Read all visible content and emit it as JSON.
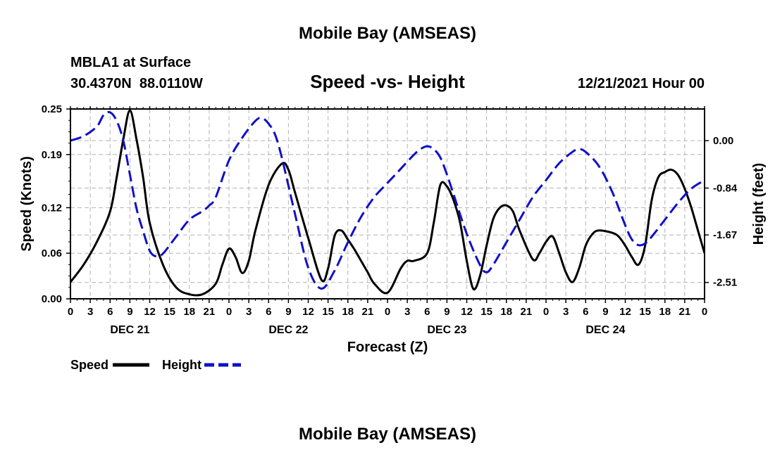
{
  "header": {
    "title": "Mobile Bay (AMSEAS)",
    "station": "MBLA1 at Surface",
    "location": "30.4370N  88.0110W",
    "subtitle": "Speed -vs- Height",
    "datetime": "12/21/2021 Hour 00"
  },
  "footer": {
    "repeated_title": "Mobile Bay (AMSEAS)"
  },
  "legend": {
    "speed_label": "Speed",
    "height_label": "Height"
  },
  "colors": {
    "speed": "#000000",
    "height": "#1010c8",
    "grid": "#b4b4b4"
  },
  "chart_data": {
    "type": "line",
    "title": "Speed -vs- Height",
    "xlabel": "Forecast (Z)",
    "ylabel": "Speed (Knots)",
    "y2label": "Height (feet)",
    "xlim": [
      0,
      96
    ],
    "ylim": [
      0,
      0.25
    ],
    "y2lim": [
      -2.8,
      0.56
    ],
    "x_tick_step_hours": 3,
    "x_tick_labels": [
      "0",
      "3",
      "6",
      "9",
      "12",
      "15",
      "18",
      "21",
      "0",
      "3",
      "6",
      "9",
      "12",
      "15",
      "18",
      "21",
      "0",
      "3",
      "6",
      "9",
      "12",
      "15",
      "18",
      "21",
      "0",
      "3",
      "6",
      "9",
      "12",
      "15",
      "18",
      "21",
      "0"
    ],
    "day_labels": [
      {
        "hour": 9,
        "label": "DEC 21"
      },
      {
        "hour": 33,
        "label": "DEC 22"
      },
      {
        "hour": 57,
        "label": "DEC 23"
      },
      {
        "hour": 81,
        "label": "DEC 24"
      }
    ],
    "y_ticks": [
      0.0,
      0.06,
      0.12,
      0.19,
      0.25
    ],
    "y_tick_labels": [
      "0.00",
      "0.06",
      "0.12",
      "0.19",
      "0.25"
    ],
    "y2_ticks": [
      0.0,
      -0.84,
      -1.67,
      -2.51
    ],
    "y2_tick_labels": [
      "0.00",
      "-0.84",
      "-1.67",
      "-2.51"
    ],
    "grid": true,
    "legend_position": "bottom-left",
    "series": [
      {
        "name": "Speed",
        "axis": "left",
        "x": [
          0,
          2,
          4,
          6,
          7,
          8,
          9,
          10,
          11,
          12,
          14,
          16,
          18,
          20,
          22,
          23,
          24,
          25,
          26,
          27,
          28,
          30,
          32,
          33,
          34,
          36,
          38,
          39,
          40,
          41,
          42,
          43,
          44,
          45,
          46,
          48,
          50,
          51,
          52,
          54,
          55,
          56,
          57,
          58,
          59,
          60,
          61,
          62,
          63,
          64,
          65,
          66,
          67,
          68,
          70,
          71,
          72,
          73,
          74,
          75,
          76,
          77,
          78,
          79,
          80,
          82,
          83,
          84,
          85,
          86,
          87,
          88,
          89,
          90,
          91,
          92,
          93,
          94,
          95,
          96
        ],
        "values": [
          0.022,
          0.045,
          0.075,
          0.115,
          0.16,
          0.21,
          0.248,
          0.21,
          0.16,
          0.1,
          0.045,
          0.015,
          0.006,
          0.006,
          0.02,
          0.045,
          0.066,
          0.055,
          0.034,
          0.05,
          0.09,
          0.15,
          0.178,
          0.17,
          0.14,
          0.08,
          0.025,
          0.04,
          0.083,
          0.09,
          0.078,
          0.065,
          0.05,
          0.035,
          0.02,
          0.008,
          0.04,
          0.05,
          0.05,
          0.06,
          0.1,
          0.15,
          0.148,
          0.13,
          0.1,
          0.05,
          0.013,
          0.03,
          0.07,
          0.105,
          0.12,
          0.123,
          0.115,
          0.09,
          0.052,
          0.06,
          0.075,
          0.082,
          0.06,
          0.035,
          0.022,
          0.04,
          0.07,
          0.085,
          0.09,
          0.087,
          0.082,
          0.07,
          0.055,
          0.045,
          0.07,
          0.13,
          0.16,
          0.167,
          0.17,
          0.163,
          0.145,
          0.12,
          0.09,
          0.06
        ]
      },
      {
        "name": "Height",
        "axis": "right",
        "x": [
          0,
          2,
          4,
          5,
          6,
          7,
          8,
          9,
          10,
          11,
          12,
          13,
          14,
          16,
          18,
          20,
          21,
          22,
          24,
          26,
          28,
          29,
          30,
          31,
          32,
          34,
          36,
          38,
          40,
          42,
          44,
          46,
          48,
          50,
          52,
          53,
          54,
          55,
          56,
          57,
          58,
          60,
          62,
          63,
          64,
          66,
          68,
          70,
          72,
          74,
          76,
          77,
          78,
          80,
          82,
          84,
          85,
          86,
          87,
          88,
          90,
          92,
          94,
          96
        ],
        "values": [
          0.0,
          0.08,
          0.25,
          0.45,
          0.5,
          0.35,
          0.0,
          -0.6,
          -1.2,
          -1.6,
          -1.95,
          -2.05,
          -2.0,
          -1.7,
          -1.4,
          -1.25,
          -1.15,
          -1.0,
          -0.35,
          0.05,
          0.35,
          0.4,
          0.3,
          0.1,
          -0.3,
          -1.3,
          -2.25,
          -2.62,
          -2.3,
          -1.8,
          -1.35,
          -1.0,
          -0.75,
          -0.5,
          -0.25,
          -0.15,
          -0.1,
          -0.15,
          -0.3,
          -0.6,
          -0.95,
          -1.65,
          -2.2,
          -2.33,
          -2.2,
          -1.8,
          -1.4,
          -1.0,
          -0.7,
          -0.4,
          -0.2,
          -0.15,
          -0.2,
          -0.45,
          -0.9,
          -1.5,
          -1.75,
          -1.85,
          -1.82,
          -1.7,
          -1.4,
          -1.1,
          -0.85,
          -0.7
        ]
      }
    ]
  }
}
